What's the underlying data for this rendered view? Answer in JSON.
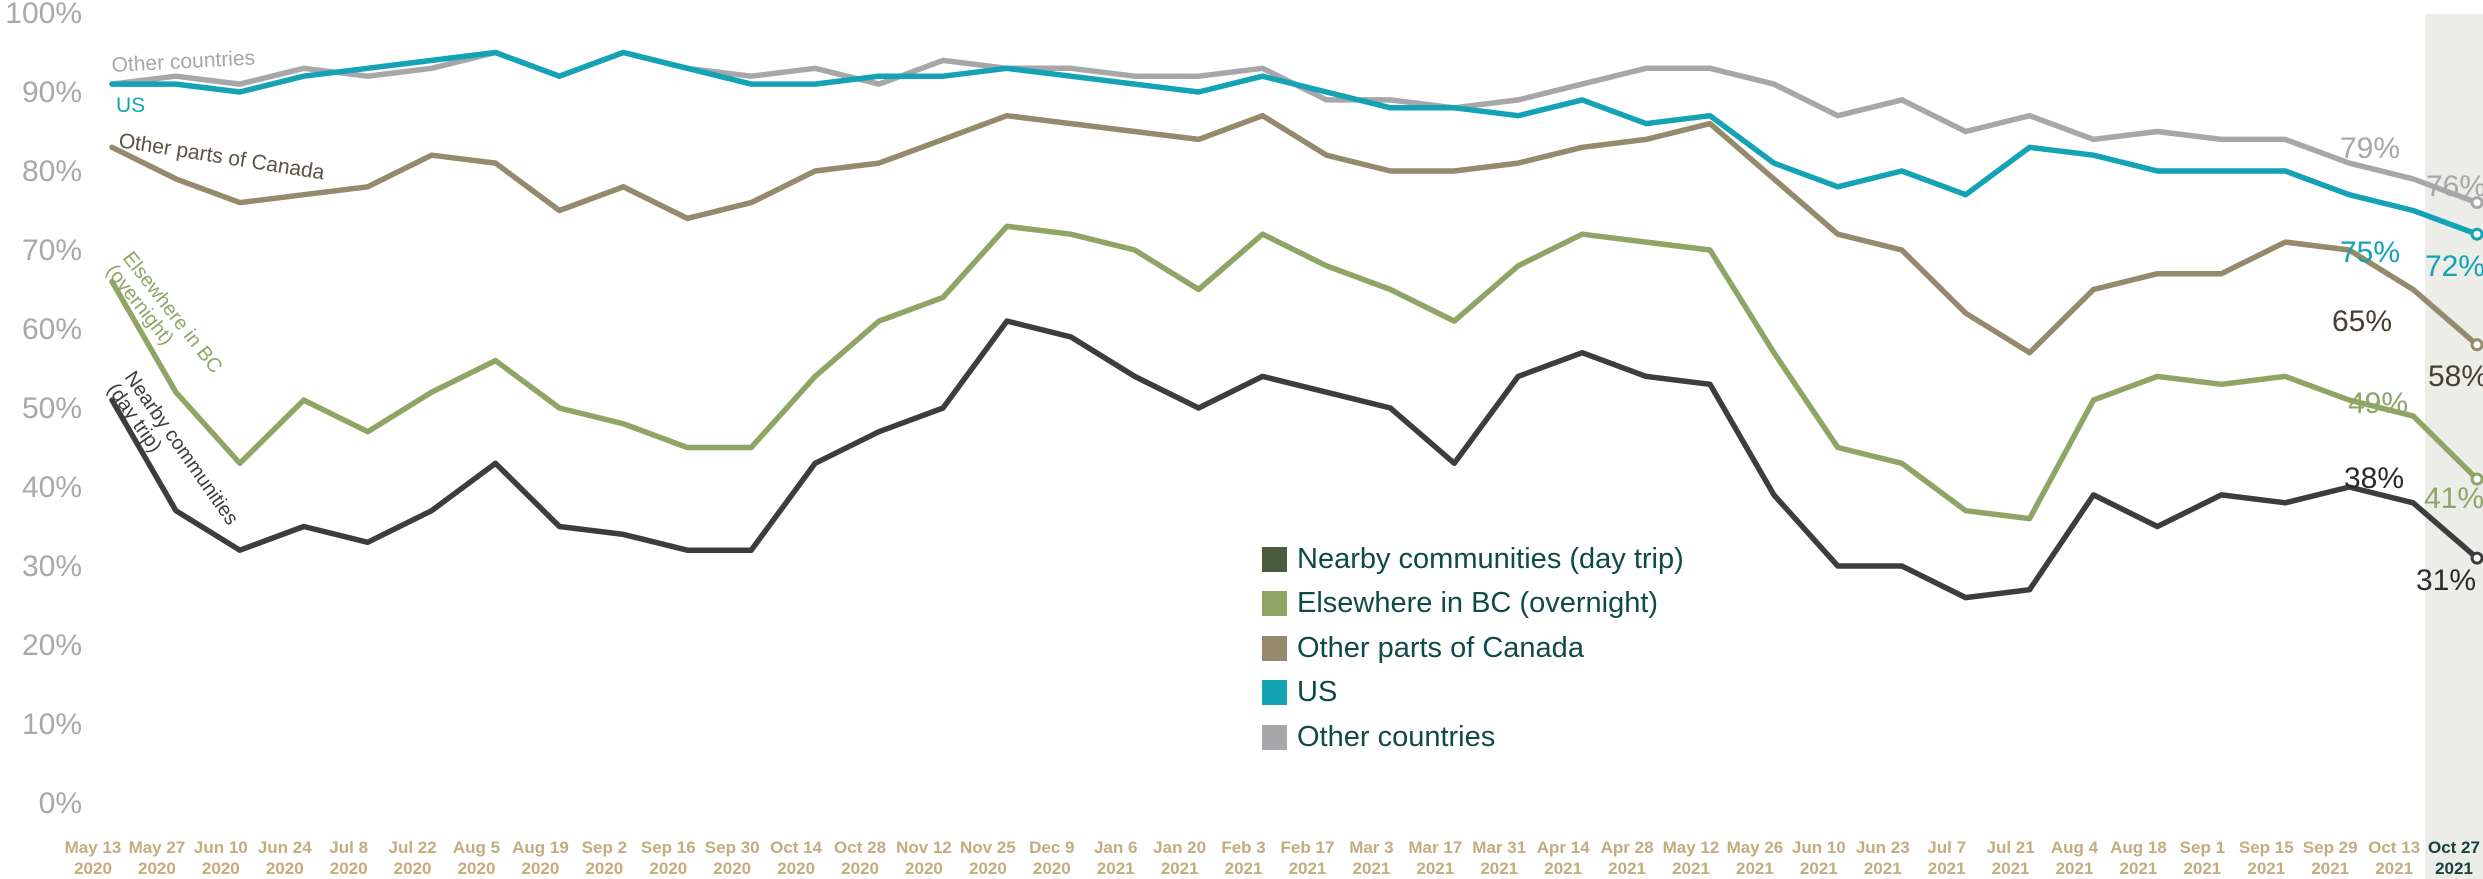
{
  "chart_data": {
    "type": "line",
    "ylim": [
      0,
      100
    ],
    "y_ticks": [
      "0%",
      "10%",
      "20%",
      "30%",
      "40%",
      "50%",
      "60%",
      "70%",
      "80%",
      "90%",
      "100%"
    ],
    "x": [
      {
        "date": "May 13",
        "year": "2020"
      },
      {
        "date": "May 27",
        "year": "2020"
      },
      {
        "date": "Jun 10",
        "year": "2020"
      },
      {
        "date": "Jun 24",
        "year": "2020"
      },
      {
        "date": "Jul 8",
        "year": "2020"
      },
      {
        "date": "Jul 22",
        "year": "2020"
      },
      {
        "date": "Aug 5",
        "year": "2020"
      },
      {
        "date": "Aug 19",
        "year": "2020"
      },
      {
        "date": "Sep 2",
        "year": "2020"
      },
      {
        "date": "Sep 16",
        "year": "2020"
      },
      {
        "date": "Sep 30",
        "year": "2020"
      },
      {
        "date": "Oct 14",
        "year": "2020"
      },
      {
        "date": "Oct 28",
        "year": "2020"
      },
      {
        "date": "Nov 12",
        "year": "2020"
      },
      {
        "date": "Nov 25",
        "year": "2020"
      },
      {
        "date": "Dec 9",
        "year": "2020"
      },
      {
        "date": "Jan 6",
        "year": "2021"
      },
      {
        "date": "Jan 20",
        "year": "2021"
      },
      {
        "date": "Feb 3",
        "year": "2021"
      },
      {
        "date": "Feb 17",
        "year": "2021"
      },
      {
        "date": "Mar 3",
        "year": "2021"
      },
      {
        "date": "Mar 17",
        "year": "2021"
      },
      {
        "date": "Mar 31",
        "year": "2021"
      },
      {
        "date": "Apr 14",
        "year": "2021"
      },
      {
        "date": "Apr 28",
        "year": "2021"
      },
      {
        "date": "May 12",
        "year": "2021"
      },
      {
        "date": "May 26",
        "year": "2021"
      },
      {
        "date": "Jun 10",
        "year": "2021"
      },
      {
        "date": "Jun 23",
        "year": "2021"
      },
      {
        "date": "Jul 7",
        "year": "2021"
      },
      {
        "date": "Jul 21",
        "year": "2021"
      },
      {
        "date": "Aug 4",
        "year": "2021"
      },
      {
        "date": "Aug 18",
        "year": "2021"
      },
      {
        "date": "Sep 1",
        "year": "2021"
      },
      {
        "date": "Sep 15",
        "year": "2021"
      },
      {
        "date": "Sep 29",
        "year": "2021"
      },
      {
        "date": "Oct 13",
        "year": "2021"
      },
      {
        "date": "Oct 27",
        "year": "2021"
      }
    ],
    "highlight_last_period": true,
    "grid": false,
    "legend_position": "lower-center",
    "series": [
      {
        "name": "Other countries",
        "inline_label": "Other countries",
        "color": "#a7a7a9",
        "values": [
          91,
          92,
          91,
          93,
          92,
          93,
          95,
          92,
          95,
          93,
          92,
          93,
          91,
          94,
          93,
          93,
          92,
          92,
          93,
          89,
          89,
          88,
          89,
          91,
          93,
          93,
          91,
          87,
          89,
          85,
          87,
          84,
          85,
          84,
          84,
          81,
          79,
          76
        ],
        "end_labels": [
          "79%",
          "76%"
        ]
      },
      {
        "name": "US",
        "inline_label": "US",
        "color": "#14a3b5",
        "values": [
          91,
          91,
          90,
          92,
          93,
          94,
          95,
          92,
          95,
          93,
          91,
          91,
          92,
          92,
          93,
          92,
          91,
          90,
          92,
          90,
          88,
          88,
          87,
          89,
          86,
          87,
          81,
          78,
          80,
          77,
          83,
          82,
          80,
          80,
          80,
          77,
          75,
          72
        ],
        "end_labels": [
          "75%",
          "72%"
        ]
      },
      {
        "name": "Other parts of Canada",
        "inline_label": "Other parts of Canada",
        "color": "#958a6c",
        "values": [
          83,
          79,
          76,
          77,
          78,
          82,
          81,
          75,
          78,
          74,
          76,
          80,
          81,
          84,
          87,
          86,
          85,
          84,
          87,
          82,
          80,
          80,
          81,
          83,
          84,
          86,
          79,
          72,
          70,
          62,
          57,
          65,
          67,
          67,
          71,
          70,
          65,
          58
        ],
        "end_labels": [
          "65%",
          "58%"
        ]
      },
      {
        "name": "Elsewhere in BC (overnight)",
        "inline_label_lines": [
          "Elsewhere in BC",
          "(overnight)"
        ],
        "color": "#8ea566",
        "values": [
          66,
          52,
          43,
          51,
          47,
          52,
          56,
          50,
          48,
          45,
          45,
          54,
          61,
          64,
          73,
          72,
          70,
          65,
          72,
          68,
          65,
          61,
          68,
          72,
          71,
          70,
          57,
          45,
          43,
          37,
          36,
          51,
          54,
          53,
          54,
          51,
          49,
          41
        ],
        "end_labels": [
          "49%",
          "41%"
        ]
      },
      {
        "name": "Nearby communities (day trip)",
        "inline_label_lines": [
          "Nearby communities",
          "(day trip)"
        ],
        "color": "#3c3d3e",
        "values": [
          51,
          37,
          32,
          35,
          33,
          37,
          43,
          35,
          34,
          32,
          32,
          43,
          47,
          50,
          61,
          59,
          54,
          50,
          54,
          52,
          50,
          43,
          54,
          57,
          54,
          53,
          39,
          30,
          30,
          26,
          27,
          39,
          35,
          39,
          38,
          40,
          38,
          31
        ],
        "end_labels": [
          "38%",
          "31%"
        ]
      }
    ],
    "legend": [
      {
        "label": "Nearby communities (day trip)",
        "color": "#4a5a3c"
      },
      {
        "label": "Elsewhere in BC (overnight)",
        "color": "#8ea566"
      },
      {
        "label": "Other parts of Canada",
        "color": "#958a6c"
      },
      {
        "label": "US",
        "color": "#14a3b5"
      },
      {
        "label": "Other countries",
        "color": "#a7a7a9"
      }
    ],
    "colors": {
      "axis_text": "#a9a9a9",
      "x_label": "#c3ac7e",
      "x_label_last": "#16403c",
      "highlight_band": "#ecede8"
    }
  }
}
